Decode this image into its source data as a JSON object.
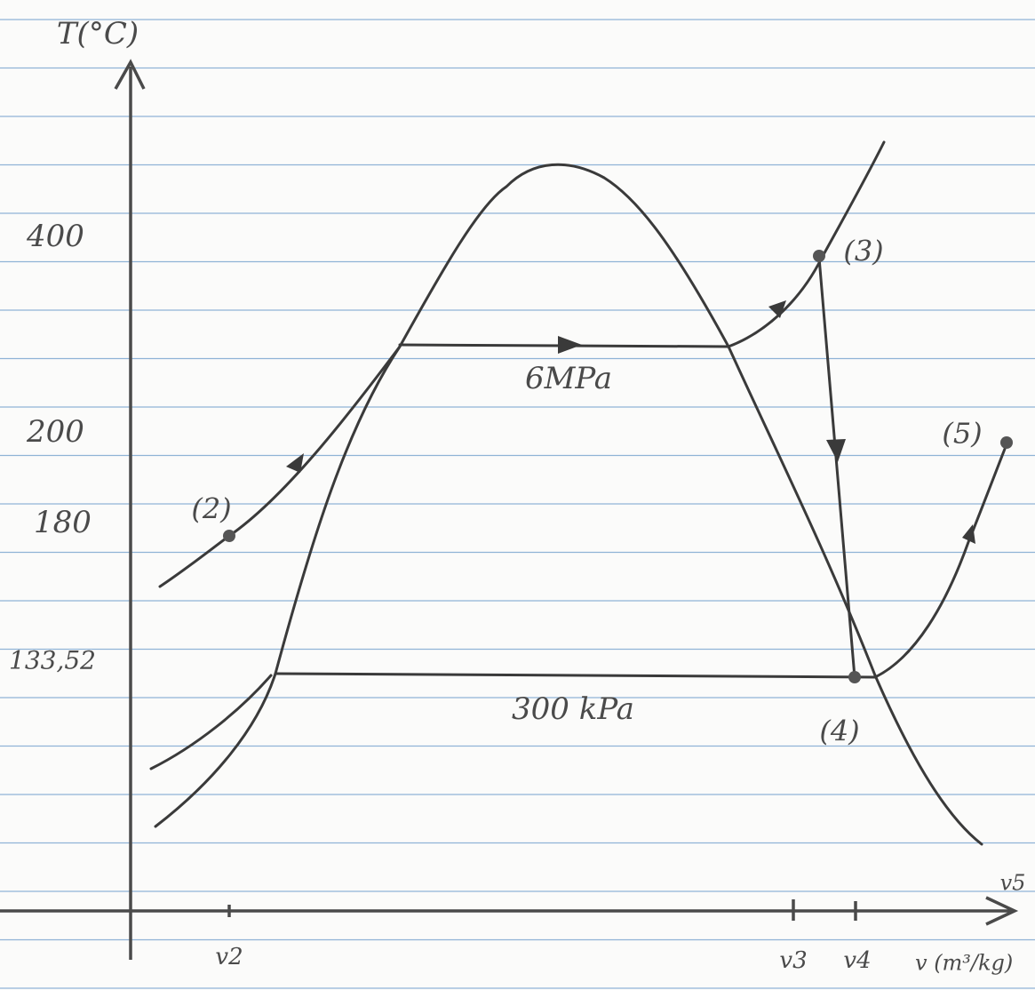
{
  "axes": {
    "y_title": "T(°C)",
    "x_title": "v (m³/kg)",
    "y_labels": [
      "400",
      "200",
      "180",
      "133,52"
    ],
    "x_labels": [
      "v2",
      "v3",
      "v4",
      "v5"
    ]
  },
  "isobars": [
    "6MPa",
    "300 kPa"
  ],
  "states": [
    "(2)",
    "(3)",
    "(4)",
    "(5)"
  ]
}
